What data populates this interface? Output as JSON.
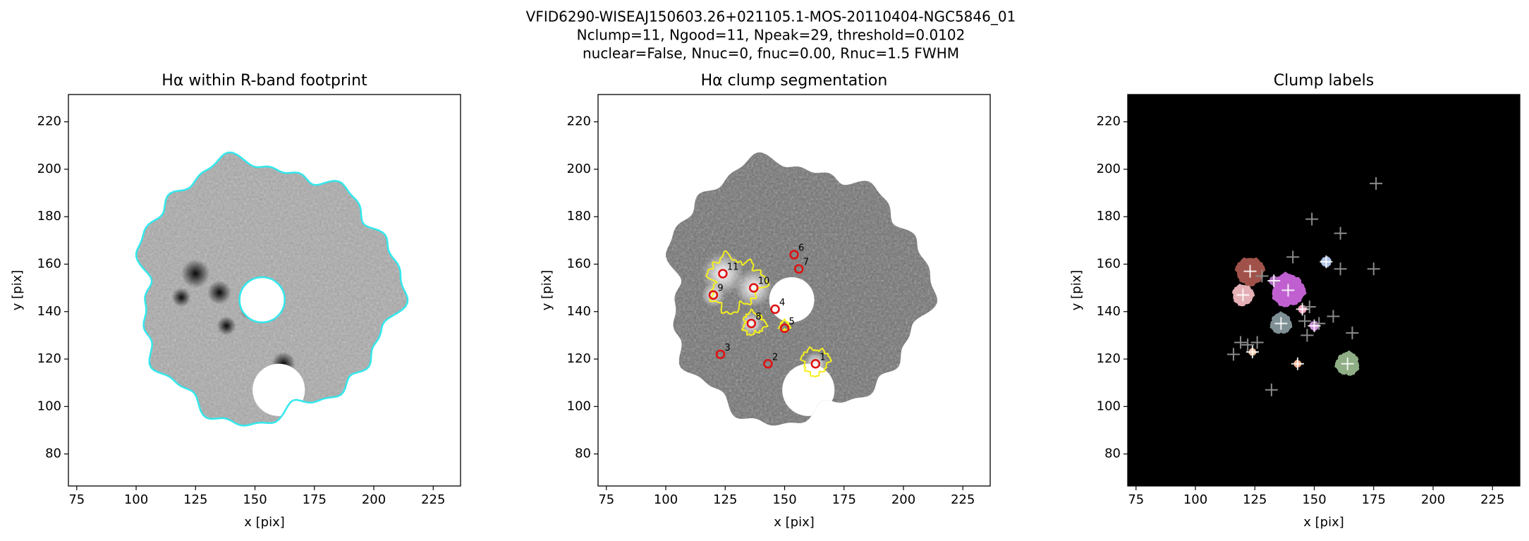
{
  "suptitle": [
    "VFID6290-WISEAJ150603.26+021105.1-MOS-20110404-NGC5846_01",
    "Nclump=11, Ngood=11, Npeak=29, threshold=0.0102",
    "nuclear=False, Nnuc=0, fnuc=0.00, Rnuc=1.5 FWHM"
  ],
  "chart_data": [
    {
      "type": "image",
      "title": "Hα within R-band footprint",
      "x_label": "x [pix]",
      "y_label": "y [pix]",
      "xlim": [
        71.5,
        236.5
      ],
      "ylim": [
        66.5,
        231.5
      ],
      "xticks": [
        75,
        100,
        125,
        150,
        175,
        200,
        225
      ],
      "yticks": [
        80,
        100,
        120,
        140,
        160,
        180,
        200,
        220
      ],
      "style": "footprint",
      "outline_color": "#33e8ec"
    },
    {
      "type": "image",
      "title": "Hα clump segmentation",
      "x_label": "x [pix]",
      "y_label": "y [pix]",
      "xlim": [
        71.5,
        236.5
      ],
      "ylim": [
        66.5,
        231.5
      ],
      "xticks": [
        75,
        100,
        125,
        150,
        175,
        200,
        225
      ],
      "yticks": [
        80,
        100,
        120,
        140,
        160,
        180,
        200,
        220
      ],
      "style": "segmentation",
      "contour_color": "#f5f01e",
      "marker_color": "#e01010",
      "markers": {
        "labels": [
          "1",
          "2",
          "3",
          "4",
          "5",
          "6",
          "7",
          "8",
          "9",
          "10",
          "11"
        ],
        "x": [
          163,
          143,
          123,
          146,
          150,
          154,
          156,
          136,
          120,
          137,
          124
        ],
        "y": [
          118,
          118,
          122,
          141,
          133,
          164,
          158,
          135,
          147,
          150,
          156
        ]
      }
    },
    {
      "type": "image",
      "title": "Clump labels",
      "x_label": "x [pix]",
      "y_label": "y [pix]",
      "xlim": [
        71.5,
        236.5
      ],
      "ylim": [
        66.5,
        231.5
      ],
      "xticks": [
        75,
        100,
        125,
        150,
        175,
        200,
        225
      ],
      "yticks": [
        80,
        100,
        120,
        140,
        160,
        180,
        200,
        220
      ],
      "style": "labels",
      "background": "#000000",
      "clumps": {
        "x": [
          123,
          120,
          139,
          136,
          164,
          155,
          150,
          145,
          143,
          124,
          133
        ],
        "y": [
          157,
          147,
          149,
          135,
          118,
          161,
          134,
          141,
          118,
          123,
          153
        ],
        "colors": [
          "#a0524a",
          "#e4b0b6",
          "#c060d0",
          "#7f9095",
          "#8fae86",
          "#b0c4e8",
          "#d090e0",
          "#f0a0c0",
          "#f4b090",
          "#f0c0a0",
          "#b070c0"
        ]
      },
      "peaks": {
        "x": [
          176,
          149,
          161,
          141,
          161,
          175,
          148,
          158,
          166,
          147,
          116,
          119,
          126,
          122,
          132,
          152,
          128,
          146
        ],
        "y": [
          194,
          179,
          173,
          163,
          158,
          158,
          142,
          138,
          131,
          130,
          122,
          127,
          127,
          126,
          107,
          135,
          155,
          136
        ]
      }
    }
  ]
}
